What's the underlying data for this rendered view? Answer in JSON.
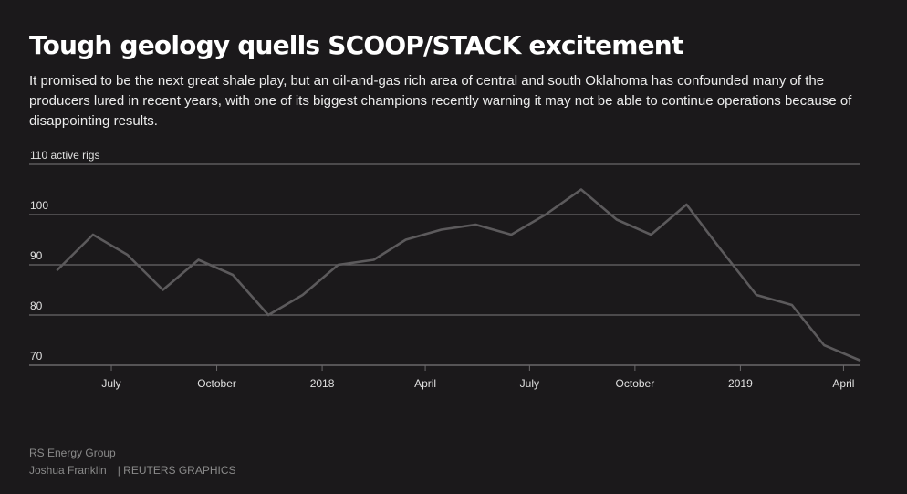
{
  "header": {
    "title": "Tough geology quells SCOOP/STACK excitement",
    "subtitle": "It promised to be the next great shale play, but an oil-and-gas rich area of central and south Oklahoma has confounded many of the producers lured in recent years, with one of its biggest champions recently warning it may not be able to continue operations because of disappointing results."
  },
  "footer": {
    "source": "RS Energy Group",
    "author": "Joshua Franklin",
    "agency": "| REUTERS GRAPHICS"
  },
  "colors": {
    "background": "#1b191b",
    "line": "#5c5a5c",
    "grid": "#6a686a"
  },
  "chart_data": {
    "type": "line",
    "ylabel": "active rigs",
    "ylim": [
      70,
      110
    ],
    "yticks": [
      {
        "value": 110,
        "label": "110 active rigs"
      },
      {
        "value": 100,
        "label": "100"
      },
      {
        "value": 90,
        "label": "90"
      },
      {
        "value": 80,
        "label": "80"
      },
      {
        "value": 70,
        "label": "70"
      }
    ],
    "xlim": [
      "2017-05-15",
      "2019-05-15"
    ],
    "xticks": [
      {
        "date": "2017-07-01",
        "label": "July"
      },
      {
        "date": "2017-10-01",
        "label": "October"
      },
      {
        "date": "2018-01-01",
        "label": "2018"
      },
      {
        "date": "2018-04-01",
        "label": "April"
      },
      {
        "date": "2018-07-01",
        "label": "July"
      },
      {
        "date": "2018-10-01",
        "label": "October"
      },
      {
        "date": "2019-01-01",
        "label": "2019"
      },
      {
        "date": "2019-04-01",
        "label": "April"
      }
    ],
    "grid": true,
    "series": [
      {
        "points": [
          {
            "x": "2017-05-15",
            "y": 89
          },
          {
            "x": "2017-06-15",
            "y": 96
          },
          {
            "x": "2017-07-15",
            "y": 92
          },
          {
            "x": "2017-08-15",
            "y": 85
          },
          {
            "x": "2017-09-15",
            "y": 91
          },
          {
            "x": "2017-10-15",
            "y": 88
          },
          {
            "x": "2017-11-15",
            "y": 80
          },
          {
            "x": "2017-12-15",
            "y": 84
          },
          {
            "x": "2018-01-15",
            "y": 90
          },
          {
            "x": "2018-02-15",
            "y": 91
          },
          {
            "x": "2018-03-15",
            "y": 95
          },
          {
            "x": "2018-04-15",
            "y": 97
          },
          {
            "x": "2018-05-15",
            "y": 98
          },
          {
            "x": "2018-06-15",
            "y": 96
          },
          {
            "x": "2018-07-15",
            "y": 100
          },
          {
            "x": "2018-08-15",
            "y": 105
          },
          {
            "x": "2018-09-15",
            "y": 99
          },
          {
            "x": "2018-10-15",
            "y": 96
          },
          {
            "x": "2018-11-15",
            "y": 102
          },
          {
            "x": "2018-12-15",
            "y": 93
          },
          {
            "x": "2019-01-15",
            "y": 84
          },
          {
            "x": "2019-02-15",
            "y": 82
          },
          {
            "x": "2019-03-15",
            "y": 74
          },
          {
            "x": "2019-04-15",
            "y": 71
          }
        ]
      }
    ]
  }
}
